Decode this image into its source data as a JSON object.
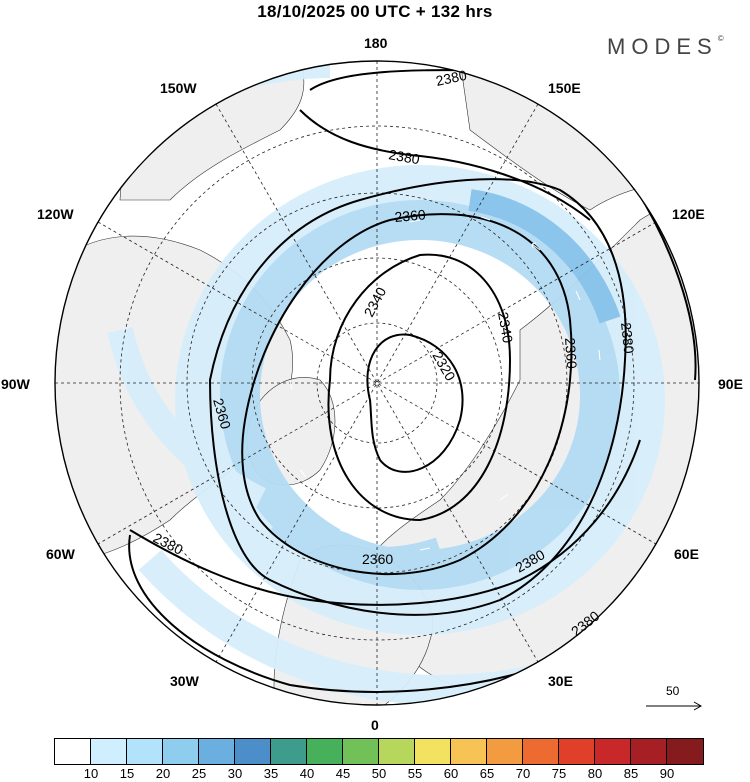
{
  "title": "18/10/2025  00 UTC  + 132 hrs",
  "brand": "MODES",
  "brand_mark": "©",
  "longitude_labels": {
    "lon180": "180",
    "lon150e": "150E",
    "lon120e": "120E",
    "lon90e": "90E",
    "lon60e": "60E",
    "lon30e": "30E",
    "lon0": "0",
    "lon30w": "30W",
    "lon60w": "60W",
    "lon90w": "90W",
    "lon120w": "120W",
    "lon150w": "150W"
  },
  "contour_labels": [
    "2380",
    "2380",
    "2360",
    "2340",
    "2340",
    "2320",
    "2360",
    "2380",
    "2360",
    "2380",
    "2380",
    "2360",
    "2380"
  ],
  "reference_vector": {
    "label": "50"
  },
  "colorbar": {
    "ticks": [
      "10",
      "15",
      "20",
      "25",
      "30",
      "35",
      "40",
      "45",
      "50",
      "55",
      "60",
      "65",
      "70",
      "75",
      "80",
      "85",
      "90"
    ],
    "colors": [
      "#ffffff",
      "#cfeefe",
      "#b3e3fb",
      "#8fcdef",
      "#6aafe0",
      "#4b8ec9",
      "#3d9c8c",
      "#46b05a",
      "#72c158",
      "#b6d65c",
      "#f2e260",
      "#f6c354",
      "#f29b40",
      "#ed6a31",
      "#e03f2a",
      "#c9282b",
      "#a51f25",
      "#861b1e"
    ]
  },
  "colors": {
    "land": "#efefef",
    "ocean": "#ffffff",
    "jet_light": "#d6eefb",
    "jet_mid": "#b4dcf4",
    "jet_strong": "#86c2ea"
  }
}
